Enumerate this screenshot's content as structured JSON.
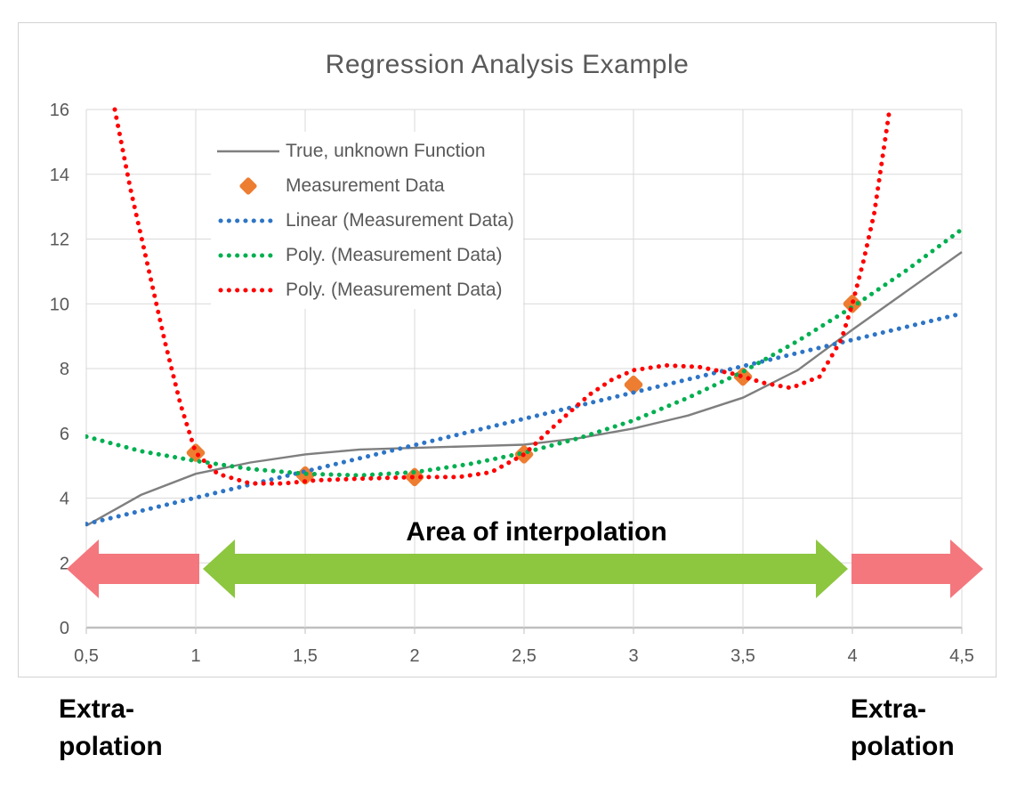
{
  "chart_data": {
    "type": "line",
    "title": "Regression Analysis Example",
    "xlabel": "",
    "ylabel": "",
    "xlim": [
      0.5,
      4.5
    ],
    "ylim": [
      0,
      16
    ],
    "grid": true,
    "legend_position": "upper-left-inside",
    "x_ticks": [
      {
        "value": 0.5,
        "label": "0,5"
      },
      {
        "value": 1,
        "label": "1"
      },
      {
        "value": 1.5,
        "label": "1,5"
      },
      {
        "value": 2,
        "label": "2"
      },
      {
        "value": 2.5,
        "label": "2,5"
      },
      {
        "value": 3,
        "label": "3"
      },
      {
        "value": 3.5,
        "label": "3,5"
      },
      {
        "value": 4,
        "label": "4"
      },
      {
        "value": 4.5,
        "label": "4,5"
      }
    ],
    "y_ticks": [
      {
        "value": 0,
        "label": "0"
      },
      {
        "value": 2,
        "label": "2"
      },
      {
        "value": 4,
        "label": "4"
      },
      {
        "value": 6,
        "label": "6"
      },
      {
        "value": 8,
        "label": "8"
      },
      {
        "value": 10,
        "label": "10"
      },
      {
        "value": 12,
        "label": "12"
      },
      {
        "value": 14,
        "label": "14"
      },
      {
        "value": 16,
        "label": "16"
      }
    ],
    "series": [
      {
        "name": "True, unknown Function",
        "kind": "line",
        "line_style": "solid",
        "color": "#7f7f7f",
        "points": [
          [
            0.5,
            3.15
          ],
          [
            0.75,
            4.1
          ],
          [
            1,
            4.75
          ],
          [
            1.25,
            5.1
          ],
          [
            1.5,
            5.35
          ],
          [
            1.75,
            5.5
          ],
          [
            2,
            5.55
          ],
          [
            2.25,
            5.6
          ],
          [
            2.5,
            5.65
          ],
          [
            2.75,
            5.85
          ],
          [
            3,
            6.15
          ],
          [
            3.25,
            6.55
          ],
          [
            3.5,
            7.1
          ],
          [
            3.75,
            7.95
          ],
          [
            4,
            9.2
          ],
          [
            4.25,
            10.4
          ],
          [
            4.5,
            11.6
          ]
        ]
      },
      {
        "name": "Measurement Data",
        "kind": "scatter",
        "marker": "diamond",
        "color": "#ED7D31",
        "points": [
          [
            1,
            5.4
          ],
          [
            1.5,
            4.7
          ],
          [
            2,
            4.65
          ],
          [
            2.5,
            5.35
          ],
          [
            3,
            7.5
          ],
          [
            3.5,
            7.75
          ],
          [
            4,
            10
          ]
        ]
      },
      {
        "name": "Linear (Measurement Data)",
        "kind": "trendline",
        "line_style": "dotted",
        "color": "#2E75C6",
        "points": [
          [
            0.5,
            3.2
          ],
          [
            4.5,
            9.7
          ]
        ]
      },
      {
        "name": "Poly. (Measurement Data)",
        "kind": "trendline",
        "line_style": "dotted",
        "color": "#00AF50",
        "points": [
          [
            0.5,
            5.9
          ],
          [
            0.75,
            5.45
          ],
          [
            1,
            5.15
          ],
          [
            1.25,
            4.9
          ],
          [
            1.5,
            4.75
          ],
          [
            1.75,
            4.7
          ],
          [
            2,
            4.8
          ],
          [
            2.25,
            5.05
          ],
          [
            2.5,
            5.4
          ],
          [
            2.75,
            5.85
          ],
          [
            3,
            6.4
          ],
          [
            3.25,
            7.1
          ],
          [
            3.5,
            7.9
          ],
          [
            3.75,
            8.85
          ],
          [
            4,
            9.9
          ],
          [
            4.25,
            11.05
          ],
          [
            4.5,
            12.3
          ]
        ]
      },
      {
        "name": "Poly. (Measurement Data)",
        "kind": "trendline",
        "line_style": "dotted",
        "color": "#FF0000",
        "points": [
          [
            0.63,
            16
          ],
          [
            0.7,
            13.6
          ],
          [
            0.78,
            11.2
          ],
          [
            0.86,
            8.8
          ],
          [
            0.93,
            6.9
          ],
          [
            1,
            5.4
          ],
          [
            1.1,
            4.75
          ],
          [
            1.25,
            4.45
          ],
          [
            1.4,
            4.45
          ],
          [
            1.55,
            4.55
          ],
          [
            1.75,
            4.6
          ],
          [
            2,
            4.65
          ],
          [
            2.2,
            4.65
          ],
          [
            2.35,
            4.8
          ],
          [
            2.5,
            5.35
          ],
          [
            2.65,
            6.3
          ],
          [
            2.8,
            7.2
          ],
          [
            2.9,
            7.65
          ],
          [
            3,
            7.95
          ],
          [
            3.15,
            8.1
          ],
          [
            3.3,
            8.05
          ],
          [
            3.45,
            7.85
          ],
          [
            3.6,
            7.55
          ],
          [
            3.72,
            7.4
          ],
          [
            3.85,
            7.75
          ],
          [
            3.95,
            8.9
          ],
          [
            4,
            10
          ],
          [
            4.05,
            11.3
          ],
          [
            4.1,
            12.8
          ],
          [
            4.17,
            16
          ]
        ]
      }
    ]
  },
  "style": {
    "frame_border_color": "#d2d2d2",
    "background": "#ffffff",
    "gridline_color": "#d9d9d9",
    "axis_line_color": "#bfbfbf",
    "tick_label_color": "#595959",
    "title_color": "#595959",
    "legend_text_color": "#595959"
  },
  "annotations": {
    "area_label": "Area of interpolation",
    "extra_left": {
      "line1": "Extra-",
      "line2": "polation"
    },
    "extra_right": {
      "line1": "Extra-",
      "line2": "polation"
    },
    "arrow_left_color": "#F4777D",
    "arrow_middle_color": "#8DC63F",
    "arrow_right_color": "#F4777D"
  }
}
